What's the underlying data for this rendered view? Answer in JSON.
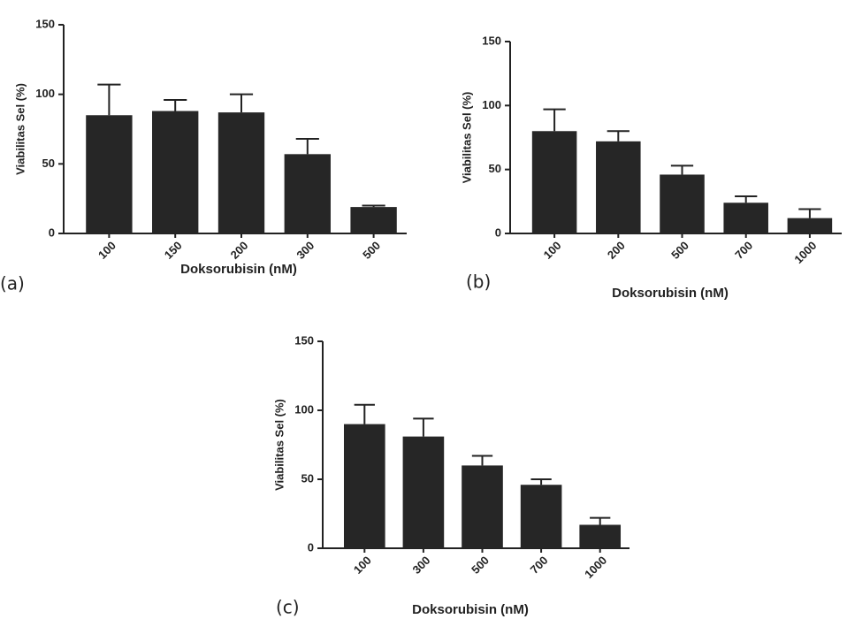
{
  "chart_data": [
    {
      "type": "bar",
      "label": "(a)",
      "xlabel": "Doksorubisin (nM)",
      "ylabel": "Viabilitas Sel (%)",
      "categories": [
        "100",
        "150",
        "200",
        "300",
        "500"
      ],
      "values": [
        85,
        88,
        87,
        57,
        19
      ],
      "errors": [
        22,
        8,
        13,
        11,
        1
      ],
      "color": "#262626",
      "ylim": [
        0,
        150
      ],
      "yticks": [
        0,
        50,
        100,
        150
      ]
    },
    {
      "type": "bar",
      "label": "(b)",
      "xlabel": "Doksorubisin (nM)",
      "ylabel": "Viabilitas Sel (%)",
      "categories": [
        "100",
        "200",
        "500",
        "700",
        "1000"
      ],
      "values": [
        80,
        72,
        46,
        24,
        12
      ],
      "errors": [
        17,
        8,
        7,
        5,
        7
      ],
      "color": "#262626",
      "ylim": [
        0,
        150
      ],
      "yticks": [
        0,
        50,
        100,
        150
      ]
    },
    {
      "type": "bar",
      "label": "(c)",
      "xlabel": "Doksorubisin (nM)",
      "ylabel": "Viabilitas Sel (%)",
      "categories": [
        "100",
        "300",
        "500",
        "700",
        "1000"
      ],
      "values": [
        90,
        81,
        60,
        46,
        17
      ],
      "errors": [
        14,
        13,
        7,
        4,
        5
      ],
      "color": "#262626",
      "ylim": [
        0,
        150
      ],
      "yticks": [
        0,
        50,
        100,
        150
      ]
    }
  ]
}
